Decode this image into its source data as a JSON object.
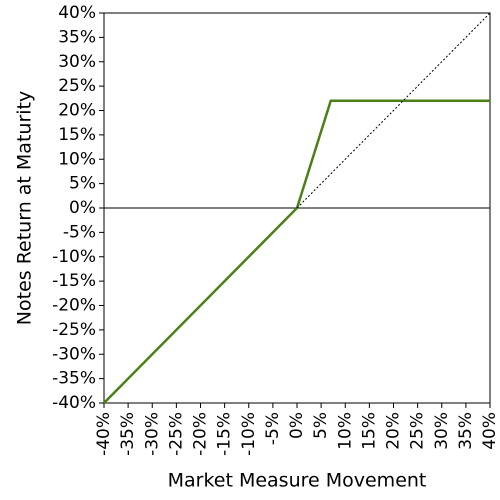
{
  "chart_data": {
    "type": "line",
    "xlabel": "Market Measure Movement",
    "ylabel": "Notes Return at Maturity",
    "xlim": [
      -40,
      40
    ],
    "ylim": [
      -40,
      40
    ],
    "xticks": [
      {
        "value": -40,
        "label": "-40%"
      },
      {
        "value": -35,
        "label": "-35%"
      },
      {
        "value": -30,
        "label": "-30%"
      },
      {
        "value": -25,
        "label": "-25%"
      },
      {
        "value": -20,
        "label": "-20%"
      },
      {
        "value": -15,
        "label": "-15%"
      },
      {
        "value": -10,
        "label": "-10%"
      },
      {
        "value": -5,
        "label": "-5%"
      },
      {
        "value": 0,
        "label": "0%"
      },
      {
        "value": 5,
        "label": "5%"
      },
      {
        "value": 10,
        "label": "10%"
      },
      {
        "value": 15,
        "label": "15%"
      },
      {
        "value": 20,
        "label": "20%"
      },
      {
        "value": 25,
        "label": "25%"
      },
      {
        "value": 30,
        "label": "30%"
      },
      {
        "value": 35,
        "label": "35%"
      },
      {
        "value": 40,
        "label": "40%"
      }
    ],
    "yticks": [
      {
        "value": -40,
        "label": "-40%"
      },
      {
        "value": -35,
        "label": "-35%"
      },
      {
        "value": -30,
        "label": "-30%"
      },
      {
        "value": -25,
        "label": "-25%"
      },
      {
        "value": -20,
        "label": "-20%"
      },
      {
        "value": -15,
        "label": "-15%"
      },
      {
        "value": -10,
        "label": "-10%"
      },
      {
        "value": -5,
        "label": "-5%"
      },
      {
        "value": 0,
        "label": "0%"
      },
      {
        "value": 5,
        "label": "5%"
      },
      {
        "value": 10,
        "label": "10%"
      },
      {
        "value": 15,
        "label": "15%"
      },
      {
        "value": 20,
        "label": "20%"
      },
      {
        "value": 25,
        "label": "25%"
      },
      {
        "value": 30,
        "label": "30%"
      },
      {
        "value": 35,
        "label": "35%"
      },
      {
        "value": 40,
        "label": "40%"
      }
    ],
    "series": [
      {
        "color": "#4d7f17",
        "style": "solid",
        "x": [
          -40,
          0,
          7,
          40
        ],
        "values": [
          -40,
          0,
          22,
          22
        ]
      },
      {
        "color": "#000000",
        "style": "dotted",
        "x": [
          0,
          40
        ],
        "values": [
          0,
          40
        ]
      }
    ]
  }
}
